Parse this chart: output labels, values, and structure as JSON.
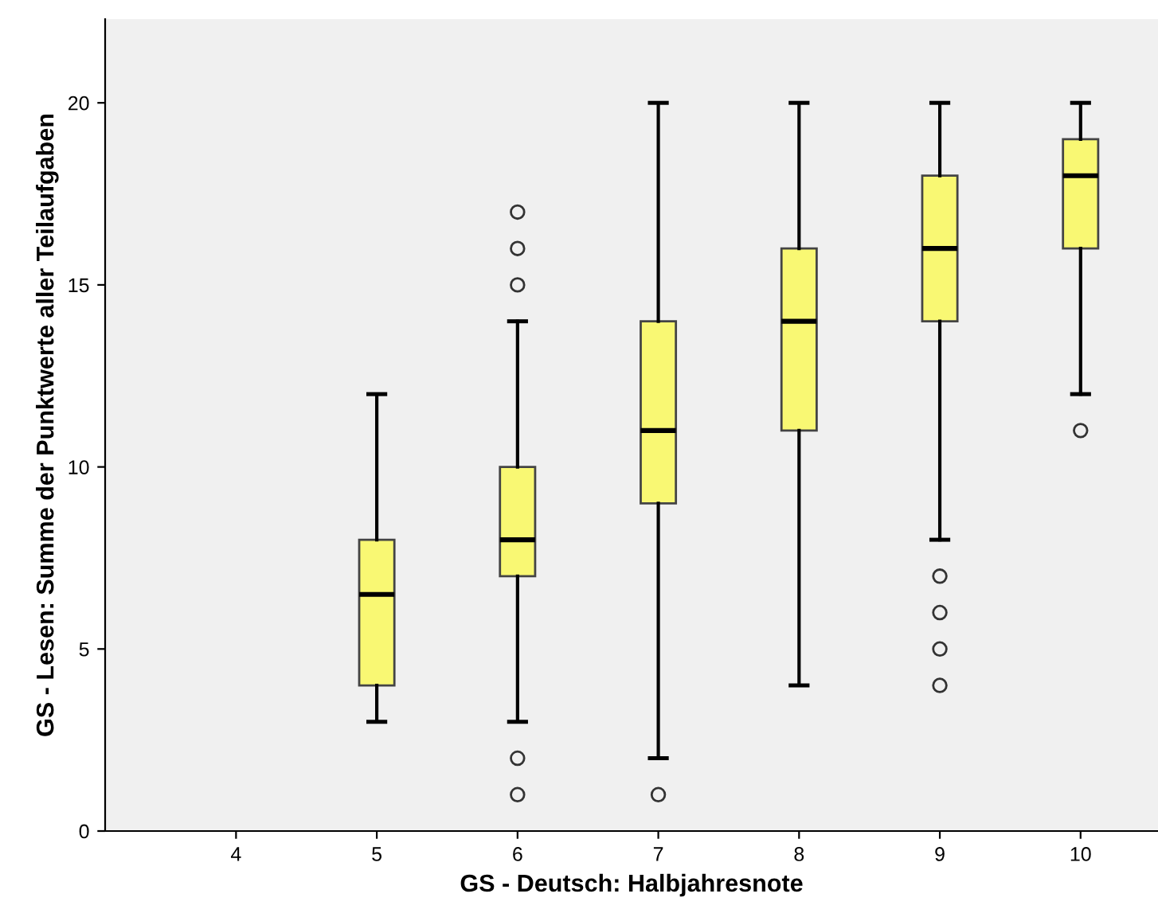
{
  "chart_data": {
    "type": "box",
    "xlabel": "GS - Deutsch: Halbjahresnote",
    "ylabel": "GS - Lesen: Summe der Punktwerte aller Teilaufgaben",
    "categories": [
      "4",
      "5",
      "6",
      "7",
      "8",
      "9",
      "10"
    ],
    "color": "#f9f873",
    "boxes": [
      null,
      {
        "low": 3,
        "q1": 4,
        "median": 6.5,
        "q3": 8,
        "high": 12
      },
      {
        "low": 3,
        "q1": 7,
        "median": 8,
        "q3": 10,
        "high": 14,
        "outliers": [
          1,
          2,
          15,
          16,
          17
        ]
      },
      {
        "low": 2,
        "q1": 9,
        "median": 11,
        "q3": 14,
        "high": 20,
        "outliers": [
          1
        ]
      },
      {
        "low": 4,
        "q1": 11,
        "median": 14,
        "q3": 16,
        "high": 20
      },
      {
        "low": 8,
        "q1": 14,
        "median": 16,
        "q3": 18,
        "high": 20,
        "outliers": [
          4,
          5,
          6,
          7
        ]
      },
      {
        "low": 12,
        "q1": 16,
        "median": 18,
        "q3": 19,
        "high": 20,
        "outliers": [
          11
        ]
      }
    ],
    "ylim": [
      0,
      22.3
    ],
    "yticks": [
      0,
      5,
      10,
      15,
      20
    ],
    "grid": false,
    "legend": false
  }
}
